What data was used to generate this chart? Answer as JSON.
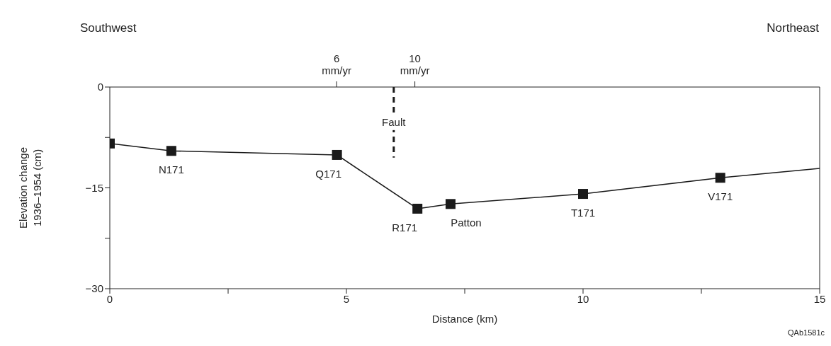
{
  "chart_data": {
    "type": "line",
    "xlabel": "Distance (km)",
    "ylabel": "Elevation change\n1936–1954 (cm)",
    "xlim": [
      0,
      15
    ],
    "xticks": [
      0,
      {
        "value": 2.5,
        "label": null
      },
      5,
      {
        "value": 7.5,
        "label": null
      },
      10,
      {
        "value": 12.5,
        "label": null
      },
      15
    ],
    "ylim": [
      -30,
      0
    ],
    "yticks": [
      -30,
      {
        "value": -22.5,
        "label": null
      },
      -15,
      {
        "value": -7.5,
        "label": null
      },
      0
    ],
    "x2lim": [
      -5.6,
      30.7
    ],
    "x2ticks": [
      {
        "value": 6,
        "label": "6 mm/yr"
      },
      {
        "value": 10,
        "label": "10 mm/yr"
      }
    ],
    "series": [
      {
        "color": "#1a1a1a",
        "marker": "none",
        "x": [
          0,
          1.3,
          4.8,
          6.5,
          7.2,
          10,
          12.9,
          15
        ],
        "values": [
          -8.4,
          -9.5,
          -10.1,
          -18.1,
          -17.4,
          -15.9,
          -13.5,
          -12.1
        ]
      },
      {
        "type": "scatter",
        "color": "#1a1a1a",
        "marker": "square",
        "x": [
          0,
          1.3,
          4.8,
          6.5,
          7.2,
          10,
          12.9
        ],
        "values": [
          -8.4,
          -9.5,
          -10.1,
          -18.1,
          -17.4,
          -15.9,
          -13.5
        ]
      }
    ],
    "ref_lines": [
      {
        "axis": "x",
        "value": 6,
        "label": "Fault",
        "line_style": "dashed",
        "color": "#1a1a1a"
      }
    ],
    "annotations": [
      "Southwest",
      "Northeast",
      "QAb1581c",
      {
        "text": "N171",
        "x": 1.3,
        "y": -9.5
      },
      {
        "text": "Q171",
        "x": 4.8,
        "y": -10.1
      },
      {
        "text": "R171",
        "x": 6.5,
        "y": -18.1
      },
      {
        "text": "Patton",
        "x": 7.2,
        "y": -17.4
      },
      {
        "text": "T171",
        "x": 10,
        "y": -15.9
      },
      {
        "text": "V171",
        "x": 12.9,
        "y": -13.5
      }
    ],
    "grid": false
  }
}
